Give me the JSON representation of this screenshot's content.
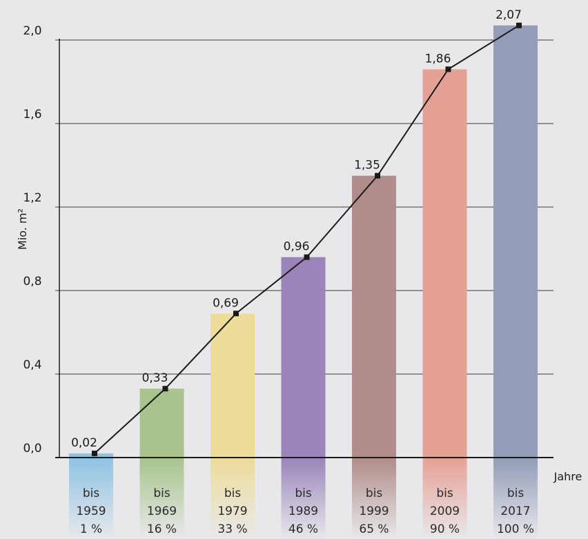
{
  "chart_data": {
    "type": "bar",
    "ylabel": "Mio. m²",
    "xlabel": "Jahre",
    "ylim": [
      0,
      2.0
    ],
    "yticks": [
      "0,0",
      "0,4",
      "0,8",
      "1,2",
      "1,6",
      "2,0"
    ],
    "ytick_values": [
      0,
      0.4,
      0.8,
      1.2,
      1.6,
      2.0
    ],
    "grid": true,
    "categories": [
      {
        "line1": "bis",
        "line2": "1959",
        "line3": "1 %"
      },
      {
        "line1": "bis",
        "line2": "1969",
        "line3": "16 %"
      },
      {
        "line1": "bis",
        "line2": "1979",
        "line3": "33 %"
      },
      {
        "line1": "bis",
        "line2": "1989",
        "line3": "46 %"
      },
      {
        "line1": "bis",
        "line2": "1999",
        "line3": "65 %"
      },
      {
        "line1": "bis",
        "line2": "2009",
        "line3": "90 %"
      },
      {
        "line1": "bis",
        "line2": "2017",
        "line3": "100 %"
      }
    ],
    "values": [
      0.02,
      0.33,
      0.69,
      0.96,
      1.35,
      1.86,
      2.07
    ],
    "value_labels": [
      "0,02",
      "0,33",
      "0,69",
      "0,96",
      "1,35",
      "1,86",
      "2,07"
    ],
    "colors": [
      "#8fc3e3",
      "#a8c48c",
      "#eddc9a",
      "#9a85bb",
      "#b08d8a",
      "#e6a196",
      "#949db8"
    ],
    "line_color": "#1a1a1a",
    "overlay_line": true
  }
}
